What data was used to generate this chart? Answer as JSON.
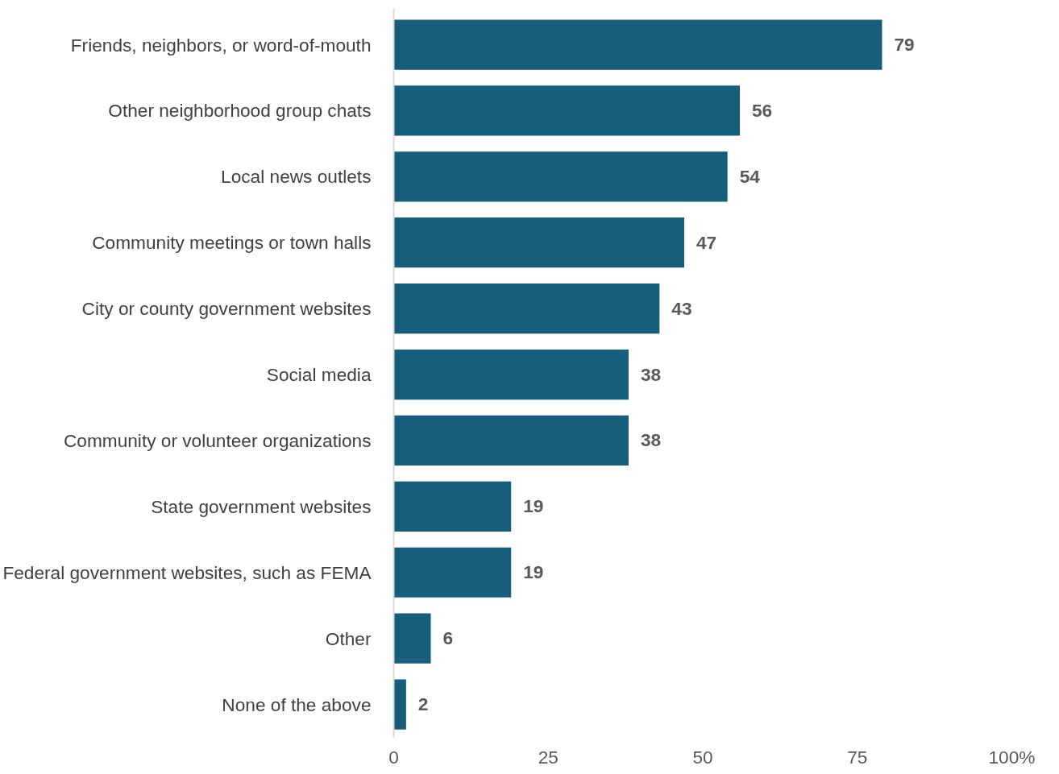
{
  "chart_data": {
    "type": "bar",
    "orientation": "horizontal",
    "categories": [
      "Friends, neighbors, or word-of-mouth",
      "Other neighborhood group chats",
      "Local news outlets",
      "Community meetings or town halls",
      "City or county government websites",
      "Social media",
      "Community or volunteer organizations",
      "State government websites",
      "Federal government websites, such as FEMA",
      "Other",
      "None of the above"
    ],
    "values": [
      79,
      56,
      54,
      47,
      43,
      38,
      38,
      19,
      19,
      6,
      2
    ],
    "color": "#175e7c",
    "xlim": [
      0,
      100
    ],
    "xticks": [
      0,
      25,
      50,
      75,
      {
        "value": 100,
        "label": "100%"
      }
    ],
    "data_labels": true,
    "grid": false
  }
}
